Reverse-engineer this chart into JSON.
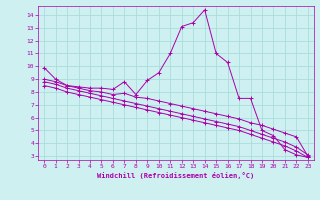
{
  "xlabel": "Windchill (Refroidissement éolien,°C)",
  "bg_color": "#cef0f0",
  "grid_color": "#aadddd",
  "line_color": "#aa00aa",
  "xlim": [
    -0.5,
    23.5
  ],
  "ylim": [
    2.7,
    14.7
  ],
  "x_ticks": [
    0,
    1,
    2,
    3,
    4,
    5,
    6,
    7,
    8,
    9,
    10,
    11,
    12,
    13,
    14,
    15,
    16,
    17,
    18,
    19,
    20,
    21,
    22,
    23
  ],
  "y_ticks": [
    3,
    4,
    5,
    6,
    7,
    8,
    9,
    10,
    11,
    12,
    13,
    14
  ],
  "series1_x": [
    0,
    1,
    2,
    3,
    4,
    5,
    6,
    7,
    8,
    9,
    10,
    11,
    12,
    13,
    14,
    15,
    16,
    17,
    18,
    19,
    20,
    21,
    22,
    23
  ],
  "series1_y": [
    9.9,
    9.0,
    8.5,
    8.4,
    8.3,
    8.3,
    8.2,
    8.8,
    7.8,
    8.9,
    9.5,
    11.0,
    13.1,
    13.4,
    14.4,
    11.0,
    10.3,
    7.5,
    7.5,
    5.0,
    4.6,
    3.5,
    3.1,
    2.9
  ],
  "series2_x": [
    0,
    1,
    2,
    3,
    4,
    5,
    6,
    7,
    8,
    9,
    10,
    11,
    12,
    13,
    14,
    15,
    16,
    17,
    18,
    19,
    20,
    21,
    22,
    23
  ],
  "series2_y": [
    9.0,
    8.8,
    8.5,
    8.3,
    8.1,
    8.0,
    7.8,
    7.9,
    7.6,
    7.5,
    7.3,
    7.1,
    6.9,
    6.7,
    6.5,
    6.3,
    6.1,
    5.9,
    5.6,
    5.4,
    5.1,
    4.8,
    4.5,
    3.0
  ],
  "series3_x": [
    0,
    1,
    2,
    3,
    4,
    5,
    6,
    7,
    8,
    9,
    10,
    11,
    12,
    13,
    14,
    15,
    16,
    17,
    18,
    19,
    20,
    21,
    22,
    23
  ],
  "series3_y": [
    8.8,
    8.6,
    8.3,
    8.1,
    7.9,
    7.7,
    7.5,
    7.3,
    7.1,
    6.9,
    6.7,
    6.5,
    6.3,
    6.1,
    5.9,
    5.7,
    5.5,
    5.3,
    5.0,
    4.7,
    4.4,
    4.1,
    3.7,
    3.1
  ],
  "series4_x": [
    0,
    1,
    2,
    3,
    4,
    5,
    6,
    7,
    8,
    9,
    10,
    11,
    12,
    13,
    14,
    15,
    16,
    17,
    18,
    19,
    20,
    21,
    22,
    23
  ],
  "series4_y": [
    8.5,
    8.3,
    8.0,
    7.8,
    7.6,
    7.4,
    7.2,
    7.0,
    6.8,
    6.6,
    6.4,
    6.2,
    6.0,
    5.8,
    5.6,
    5.4,
    5.2,
    5.0,
    4.7,
    4.4,
    4.1,
    3.8,
    3.4,
    2.9
  ]
}
